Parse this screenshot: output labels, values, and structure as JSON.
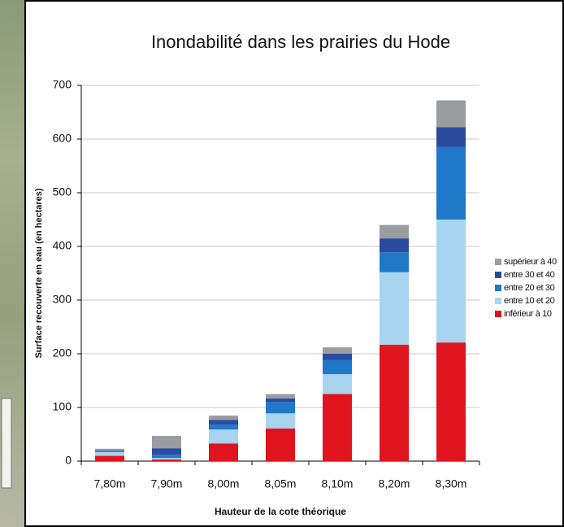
{
  "chart_data": {
    "type": "stacked_bar",
    "title": "Inondabilité dans les prairies du Hode",
    "x_label": "Hauteur de la cote théorique",
    "y_label": "Surface recouverte en eau (en hectares)",
    "categories": [
      "7,80m",
      "7,90m",
      "8,00m",
      "8,05m",
      "8,10m",
      "8,20m",
      "8,30m"
    ],
    "series": [
      {
        "name": "inférieur à 10",
        "color": "#e0141e",
        "values": [
          10,
          3,
          33,
          61,
          125,
          217,
          221
        ]
      },
      {
        "name": "entre 10 et 20",
        "color": "#a8d4ef",
        "values": [
          7,
          3,
          26,
          28,
          37,
          135,
          229
        ]
      },
      {
        "name": "entre 20 et 30",
        "color": "#1f78c8",
        "values": [
          2,
          6,
          9,
          21,
          26,
          37,
          135
        ]
      },
      {
        "name": "entre 30 et 40",
        "color": "#2b4c9e",
        "values": [
          1,
          12,
          9,
          7,
          12,
          26,
          37
        ]
      },
      {
        "name": "supérieur à 40",
        "color": "#9a9ca0",
        "values": [
          3,
          23,
          8,
          8,
          12,
          25,
          50
        ]
      }
    ],
    "ylim": [
      0,
      700
    ],
    "yticks": [
      0,
      100,
      200,
      300,
      400,
      500,
      600,
      700
    ],
    "grid": true
  }
}
